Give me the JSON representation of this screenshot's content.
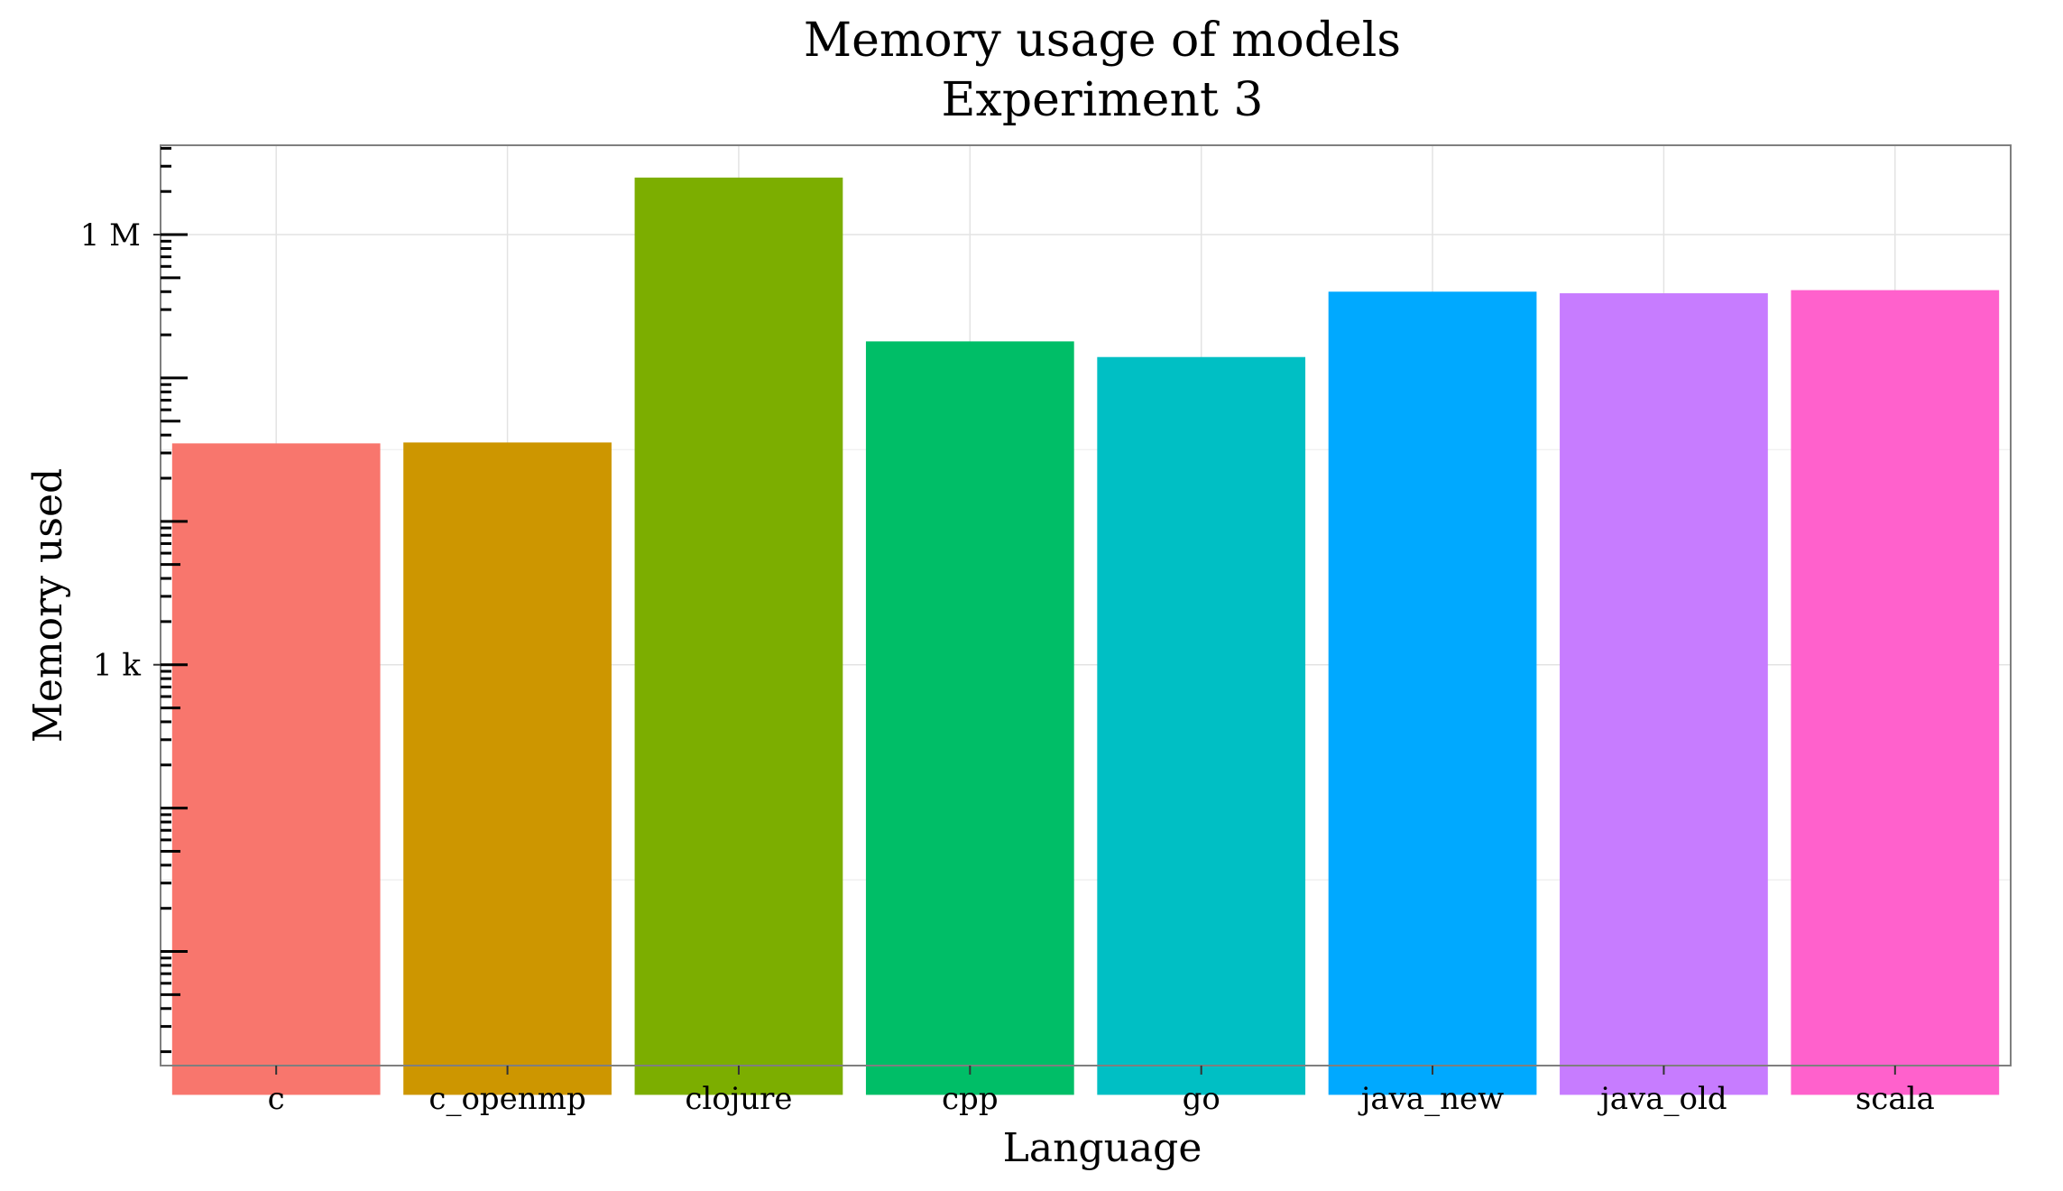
{
  "chart_data": {
    "type": "bar",
    "title": "Memory usage of models",
    "subtitle": "Experiment 3",
    "xlabel": "Language",
    "ylabel": "Memory used",
    "y_scale": "log10",
    "ylim": [
      1.6,
      4200000
    ],
    "y_ticks": [
      {
        "value": 1000,
        "label": "1 k"
      },
      {
        "value": 1000000,
        "label": "1 M"
      }
    ],
    "grid": true,
    "legend": "none",
    "categories": [
      "c",
      "c_openmp",
      "clojure",
      "cpp",
      "go",
      "java_new",
      "java_old",
      "scala"
    ],
    "values": [
      35000,
      35500,
      2500000,
      180000,
      140000,
      400000,
      390000,
      410000
    ],
    "colors": [
      "#F8766D",
      "#CD9600",
      "#7CAE00",
      "#00BE67",
      "#00BFC4",
      "#00A9FF",
      "#C77CFF",
      "#FF61CC"
    ]
  }
}
